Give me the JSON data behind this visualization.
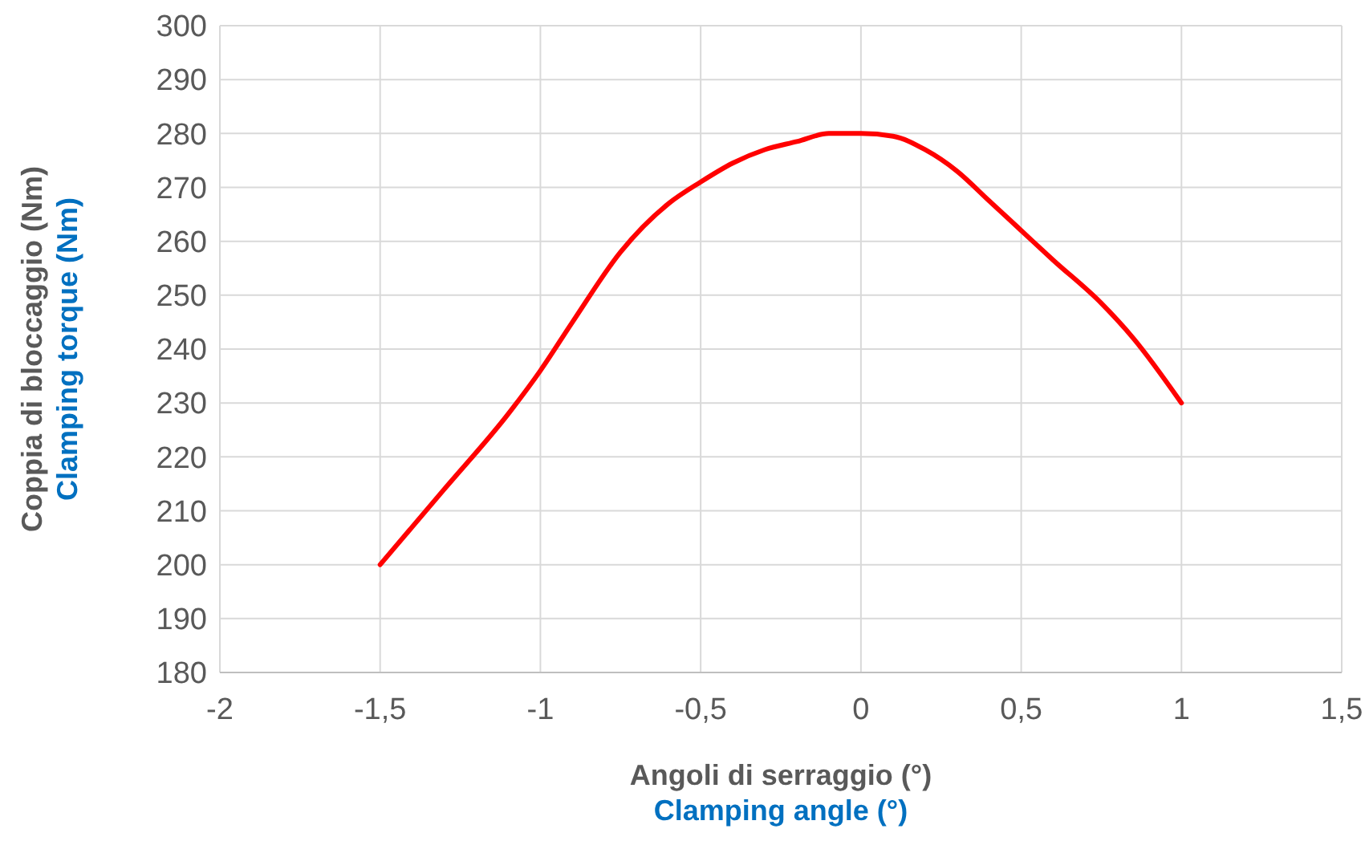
{
  "chart_data": {
    "type": "line",
    "xlabel": "Angoli di serraggio (°)\nClamping angle (°)",
    "ylabel": "Coppia di bloccaggio (Nm)\nClamping torque (Nm)",
    "series": [
      {
        "color": "#ff0000",
        "x": [
          -1.5,
          -1.3,
          -1.1,
          -1,
          -0.9,
          -0.75,
          -0.6,
          -0.5,
          -0.4,
          -0.3,
          -0.2,
          -0.1,
          0,
          0.1,
          0.2,
          0.3,
          0.4,
          0.5,
          0.6,
          0.75,
          0.85,
          1
        ],
        "values": [
          200,
          214,
          228,
          236,
          245,
          258,
          267,
          271,
          274.5,
          277,
          278.5,
          280,
          280,
          279.5,
          277,
          273,
          267.5,
          262,
          256.5,
          248.5,
          242,
          230
        ]
      }
    ],
    "xlim": [
      -2,
      1.5
    ],
    "xticks": [
      -2,
      {
        "value": -1.5,
        "label": "-1,5"
      },
      -1,
      {
        "value": -0.5,
        "label": "-0,5"
      },
      0,
      {
        "value": 0.5,
        "label": "0,5"
      },
      1,
      {
        "value": 1.5,
        "label": "1,5"
      }
    ],
    "ylim": [
      180,
      300
    ],
    "yticks": [
      180,
      190,
      200,
      210,
      220,
      230,
      240,
      250,
      260,
      270,
      280,
      290,
      300
    ],
    "grid": true,
    "marker": "none",
    "line_style": "solid"
  }
}
